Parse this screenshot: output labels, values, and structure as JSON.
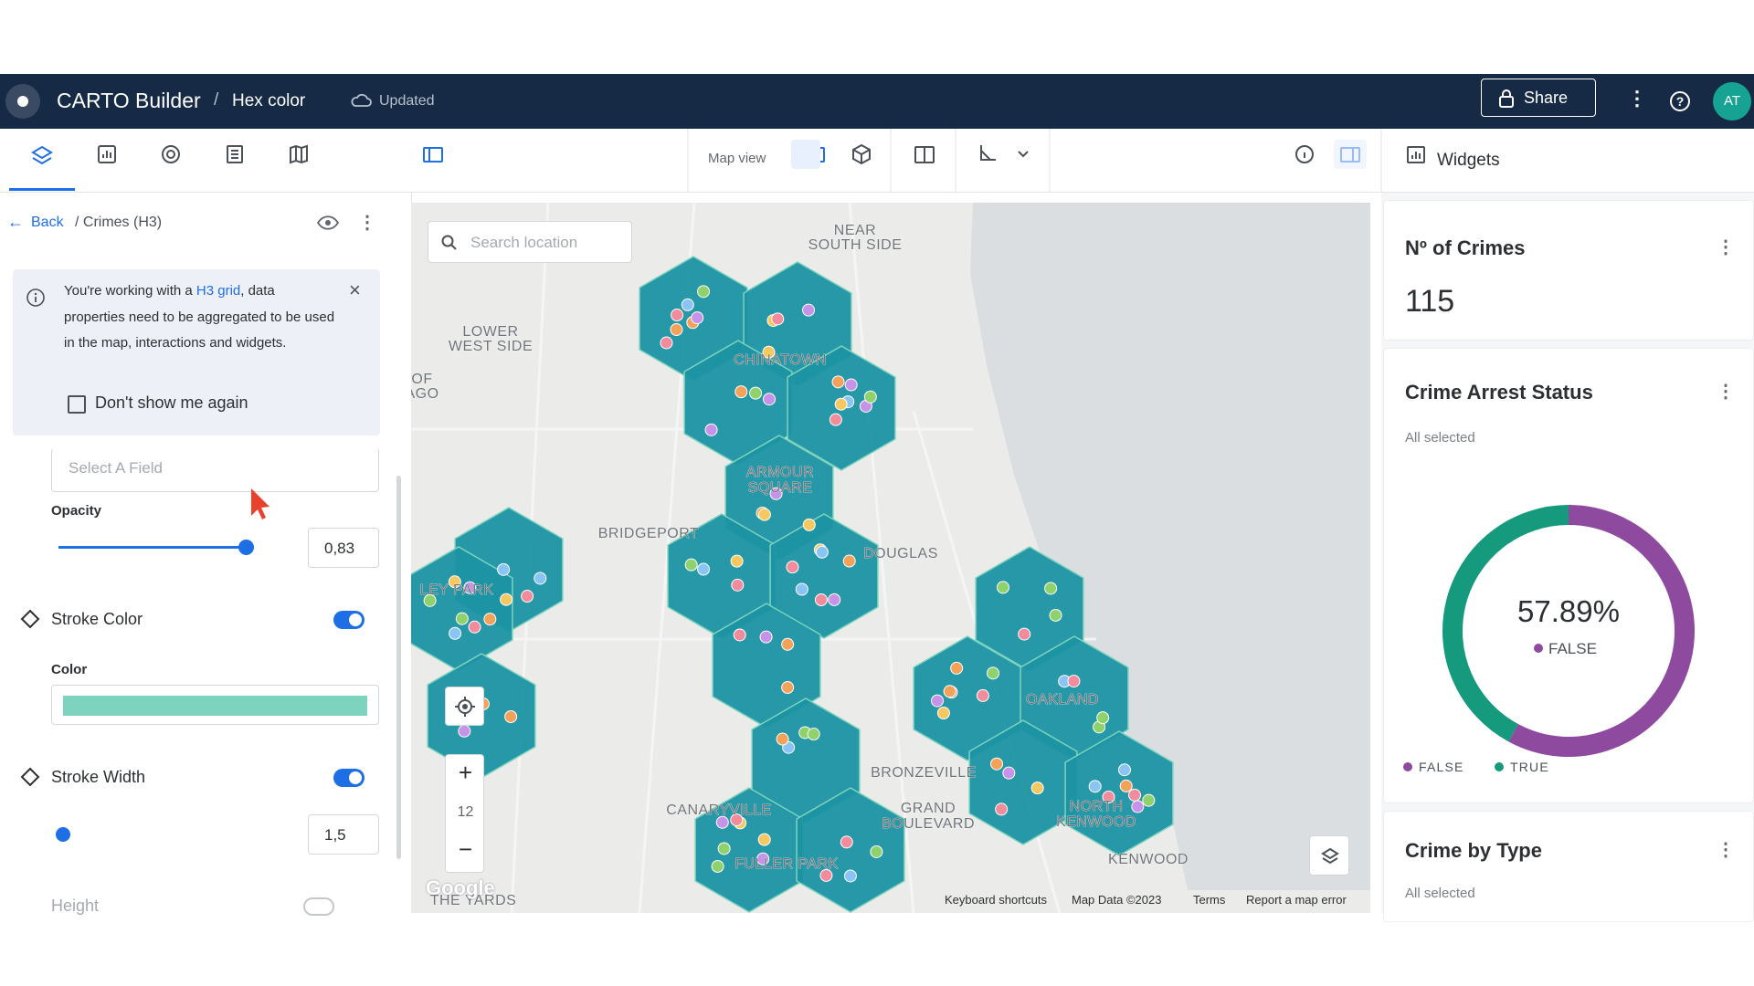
{
  "header": {
    "app": "CARTO Builder",
    "separator": "/",
    "map_name": "Hex color",
    "status": "Updated",
    "share": "Share",
    "avatar": "AT"
  },
  "toolbar": {
    "map_view": "Map view",
    "widgets": "Widgets"
  },
  "layer_panel": {
    "back": "Back",
    "breadcrumb": "/ Crimes (H3)",
    "notice": {
      "before": "You're working with a ",
      "link": "H3 grid",
      "after": ", data properties need to be aggregated to be used in the map, interactions and widgets.",
      "checkbox": "Don't show me again"
    },
    "field_placeholder": "Select A Field",
    "opacity": {
      "label": "Opacity",
      "value": "0,83"
    },
    "stroke_color": {
      "label": "Stroke Color",
      "color_label": "Color",
      "color": "#7dd3bd"
    },
    "stroke_width": {
      "label": "Stroke Width",
      "value": "1,5"
    },
    "height": {
      "label": "Height"
    }
  },
  "map": {
    "search_placeholder": "Search location",
    "zoom": "12",
    "labels": [
      "NEAR",
      "SOUTH SIDE",
      "LOWER",
      "WEST SIDE",
      "OF",
      "AGO",
      "CHINATOWN",
      "ARMOUR",
      "SQUARE",
      "BRIDGEPORT",
      "DOUGLAS",
      "LEY PARK",
      "OAKLAND",
      "BRONZEVILLE",
      "GRAND",
      "BOULEVARD",
      "NORTH",
      "KENWOOD",
      "CANARYVILLE",
      "FULLER PARK",
      "KENWOOD",
      "THE YARDS"
    ],
    "footer": [
      "Keyboard shortcuts",
      "Map Data ©2023",
      "Terms",
      "Report a map error"
    ],
    "logo": "Google"
  },
  "widgets": [
    {
      "title": "Nº of Crimes",
      "value": "115"
    },
    {
      "title": "Crime Arrest Status",
      "subtitle": "All selected",
      "chart": {
        "type": "pie",
        "categories": [
          "FALSE",
          "TRUE"
        ],
        "values": [
          57.89,
          42.11
        ],
        "colors": [
          "#8e4a9e",
          "#169a7d"
        ],
        "center_label": "57.89%"
      }
    },
    {
      "title": "Crime by Type",
      "subtitle": "All selected"
    }
  ]
}
